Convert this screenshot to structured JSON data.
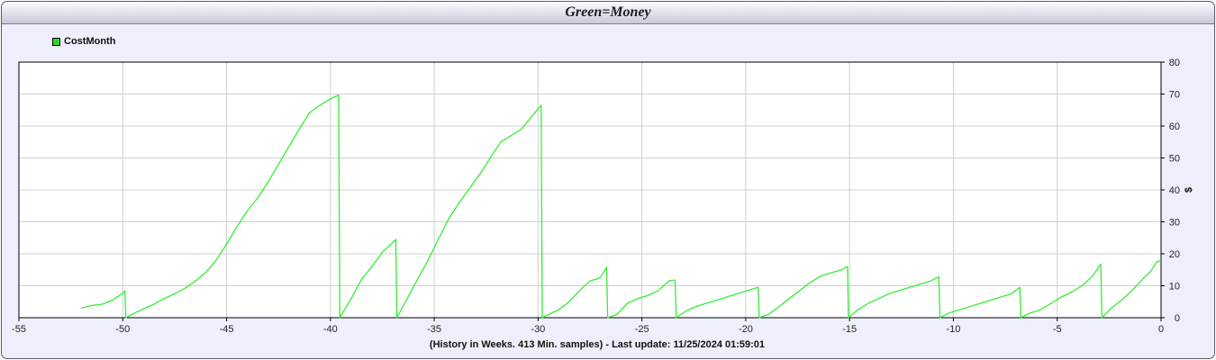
{
  "window": {
    "title": "Green=Money"
  },
  "footer": {
    "text": "(History in Weeks. 413 Min. samples) - Last update: 11/25/2024 01:59:01"
  },
  "colors": {
    "series": "#33ee33",
    "background": "#eeeefc",
    "plot": "#ffffff",
    "grid": "#cfcfcf"
  },
  "chart_data": {
    "type": "line",
    "title": "Green=Money",
    "xlabel": "(History in Weeks. 413 Min. samples) - Last update: 11/25/2024 01:59:01",
    "ylabel": "$",
    "xlim": [
      -55,
      0
    ],
    "ylim": [
      0,
      80
    ],
    "x_ticks": [
      -55,
      -50,
      -45,
      -40,
      -35,
      -30,
      -25,
      -20,
      -15,
      -10,
      -5,
      0
    ],
    "y_ticks": [
      0,
      10,
      20,
      30,
      40,
      50,
      60,
      70,
      80
    ],
    "y_axis_side": "right",
    "grid": true,
    "legend": "top-left",
    "series": [
      {
        "name": "CostMonth",
        "points": [
          [
            -52,
            3
          ],
          [
            -51.5,
            3.8
          ],
          [
            -51,
            4.2
          ],
          [
            -50.5,
            5.5
          ],
          [
            -50.1,
            7.2
          ],
          [
            -49.9,
            8.3
          ],
          [
            -49.85,
            0
          ],
          [
            -49.5,
            1.2
          ],
          [
            -49,
            2.8
          ],
          [
            -48.5,
            4.2
          ],
          [
            -48,
            6
          ],
          [
            -47.5,
            7.5
          ],
          [
            -47,
            9.2
          ],
          [
            -46.5,
            11.5
          ],
          [
            -46,
            14.2
          ],
          [
            -45.5,
            18
          ],
          [
            -45,
            23
          ],
          [
            -44.5,
            28.5
          ],
          [
            -44,
            33.5
          ],
          [
            -43.5,
            37.5
          ],
          [
            -43,
            42.5
          ],
          [
            -42.5,
            48
          ],
          [
            -42,
            53.5
          ],
          [
            -41.5,
            59
          ],
          [
            -41,
            64.2
          ],
          [
            -40.5,
            66.5
          ],
          [
            -40,
            68.5
          ],
          [
            -39.6,
            69.7
          ],
          [
            -39.55,
            0
          ],
          [
            -39,
            6
          ],
          [
            -38.5,
            12
          ],
          [
            -38,
            16
          ],
          [
            -37.5,
            20.5
          ],
          [
            -37,
            23.5
          ],
          [
            -36.85,
            24.5
          ],
          [
            -36.8,
            0
          ],
          [
            -36.3,
            6
          ],
          [
            -35.8,
            12
          ],
          [
            -35.3,
            18
          ],
          [
            -34.8,
            24.5
          ],
          [
            -34.3,
            31
          ],
          [
            -33.8,
            36
          ],
          [
            -33.3,
            40.5
          ],
          [
            -32.8,
            45
          ],
          [
            -32.3,
            50
          ],
          [
            -31.8,
            55
          ],
          [
            -31.3,
            57
          ],
          [
            -30.8,
            59
          ],
          [
            -30.3,
            63
          ],
          [
            -29.85,
            66.5
          ],
          [
            -29.8,
            0
          ],
          [
            -29.5,
            1
          ],
          [
            -29,
            2.5
          ],
          [
            -28.5,
            5
          ],
          [
            -28,
            8.5
          ],
          [
            -27.5,
            11.5
          ],
          [
            -27,
            12.5
          ],
          [
            -26.7,
            15.8
          ],
          [
            -26.65,
            0
          ],
          [
            -26.2,
            1
          ],
          [
            -25.7,
            4.5
          ],
          [
            -25.2,
            6
          ],
          [
            -24.7,
            7
          ],
          [
            -24.2,
            8.5
          ],
          [
            -23.7,
            11.5
          ],
          [
            -23.4,
            11.8
          ],
          [
            -23.35,
            0
          ],
          [
            -22.9,
            2
          ],
          [
            -22.4,
            3.5
          ],
          [
            -21.9,
            4.5
          ],
          [
            -21.4,
            5.5
          ],
          [
            -20.9,
            6.5
          ],
          [
            -20.4,
            7.5
          ],
          [
            -19.9,
            8.5
          ],
          [
            -19.4,
            9.5
          ],
          [
            -19.35,
            0
          ],
          [
            -18.9,
            1
          ],
          [
            -18.4,
            3.5
          ],
          [
            -17.9,
            6
          ],
          [
            -17.4,
            8.5
          ],
          [
            -16.9,
            11
          ],
          [
            -16.4,
            13
          ],
          [
            -15.9,
            14
          ],
          [
            -15.4,
            15
          ],
          [
            -15.1,
            16
          ],
          [
            -15.05,
            0
          ],
          [
            -14.6,
            2.5
          ],
          [
            -14.1,
            4.5
          ],
          [
            -13.6,
            6
          ],
          [
            -13.1,
            7.5
          ],
          [
            -12.6,
            8.5
          ],
          [
            -12.1,
            9.5
          ],
          [
            -11.6,
            10.5
          ],
          [
            -11.1,
            11.5
          ],
          [
            -10.7,
            12.8
          ],
          [
            -10.65,
            0
          ],
          [
            -10.2,
            1.5
          ],
          [
            -9.7,
            2.5
          ],
          [
            -9.2,
            3.5
          ],
          [
            -8.7,
            4.5
          ],
          [
            -8.2,
            5.5
          ],
          [
            -7.7,
            6.5
          ],
          [
            -7.2,
            7.5
          ],
          [
            -6.8,
            9.5
          ],
          [
            -6.75,
            0
          ],
          [
            -6.3,
            1.5
          ],
          [
            -5.8,
            2.5
          ],
          [
            -5.3,
            4.5
          ],
          [
            -4.8,
            6.5
          ],
          [
            -4.3,
            8
          ],
          [
            -3.8,
            10
          ],
          [
            -3.3,
            13
          ],
          [
            -2.9,
            16.8
          ],
          [
            -2.85,
            0
          ],
          [
            -2.4,
            3
          ],
          [
            -1.9,
            5.5
          ],
          [
            -1.4,
            8.5
          ],
          [
            -0.9,
            12
          ],
          [
            -0.5,
            14.5
          ],
          [
            -0.2,
            17.5
          ],
          [
            0,
            17.8
          ]
        ]
      }
    ]
  }
}
